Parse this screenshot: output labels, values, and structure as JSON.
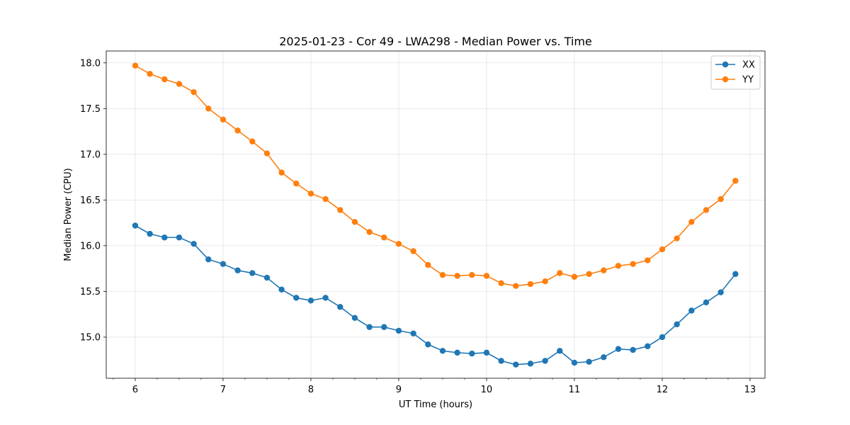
{
  "chart_data": {
    "type": "line",
    "title": "2025-01-23 - Cor 49 - LWA298 - Median Power vs. Time",
    "xlabel": "UT Time (hours)",
    "ylabel": "Median Power (CPU)",
    "xlim": [
      5.67,
      13.17
    ],
    "ylim": [
      14.55,
      18.13
    ],
    "xticks": [
      6,
      7,
      8,
      9,
      10,
      11,
      12,
      13
    ],
    "yticks": [
      15.0,
      15.5,
      16.0,
      16.5,
      17.0,
      17.5,
      18.0
    ],
    "xtick_labels": [
      "6",
      "7",
      "8",
      "9",
      "10",
      "11",
      "12",
      "13"
    ],
    "ytick_labels": [
      "15.0",
      "15.5",
      "16.0",
      "16.5",
      "17.0",
      "17.5",
      "18.0"
    ],
    "grid": true,
    "legend_position": "top-right",
    "x": [
      6.0,
      6.1667,
      6.3333,
      6.5,
      6.6667,
      6.8333,
      7.0,
      7.1667,
      7.3333,
      7.5,
      7.6667,
      7.8333,
      8.0,
      8.1667,
      8.3333,
      8.5,
      8.6667,
      8.8333,
      9.0,
      9.1667,
      9.3333,
      9.5,
      9.6667,
      9.8333,
      10.0,
      10.1667,
      10.3333,
      10.5,
      10.6667,
      10.8333,
      11.0,
      11.1667,
      11.3333,
      11.5,
      11.6667,
      11.8333,
      12.0,
      12.1667,
      12.3333,
      12.5,
      12.6667,
      12.8333
    ],
    "series": [
      {
        "name": "XX",
        "color": "#1f77b4",
        "values": [
          16.22,
          16.13,
          16.09,
          16.09,
          16.02,
          15.85,
          15.8,
          15.73,
          15.7,
          15.65,
          15.52,
          15.43,
          15.4,
          15.43,
          15.33,
          15.21,
          15.11,
          15.11,
          15.07,
          15.04,
          14.92,
          14.85,
          14.83,
          14.82,
          14.83,
          14.74,
          14.7,
          14.71,
          14.74,
          14.85,
          14.72,
          14.73,
          14.78,
          14.87,
          14.86,
          14.9,
          15.0,
          15.14,
          15.29,
          15.38,
          15.49,
          15.69
        ]
      },
      {
        "name": "YY",
        "color": "#ff7f0e",
        "values": [
          17.97,
          17.88,
          17.82,
          17.77,
          17.68,
          17.5,
          17.38,
          17.26,
          17.14,
          17.01,
          16.8,
          16.68,
          16.57,
          16.51,
          16.39,
          16.26,
          16.15,
          16.09,
          16.02,
          15.94,
          15.79,
          15.68,
          15.67,
          15.68,
          15.67,
          15.59,
          15.56,
          15.58,
          15.61,
          15.7,
          15.66,
          15.69,
          15.73,
          15.78,
          15.8,
          15.84,
          15.96,
          16.08,
          16.26,
          16.39,
          16.51,
          16.71
        ]
      }
    ]
  }
}
